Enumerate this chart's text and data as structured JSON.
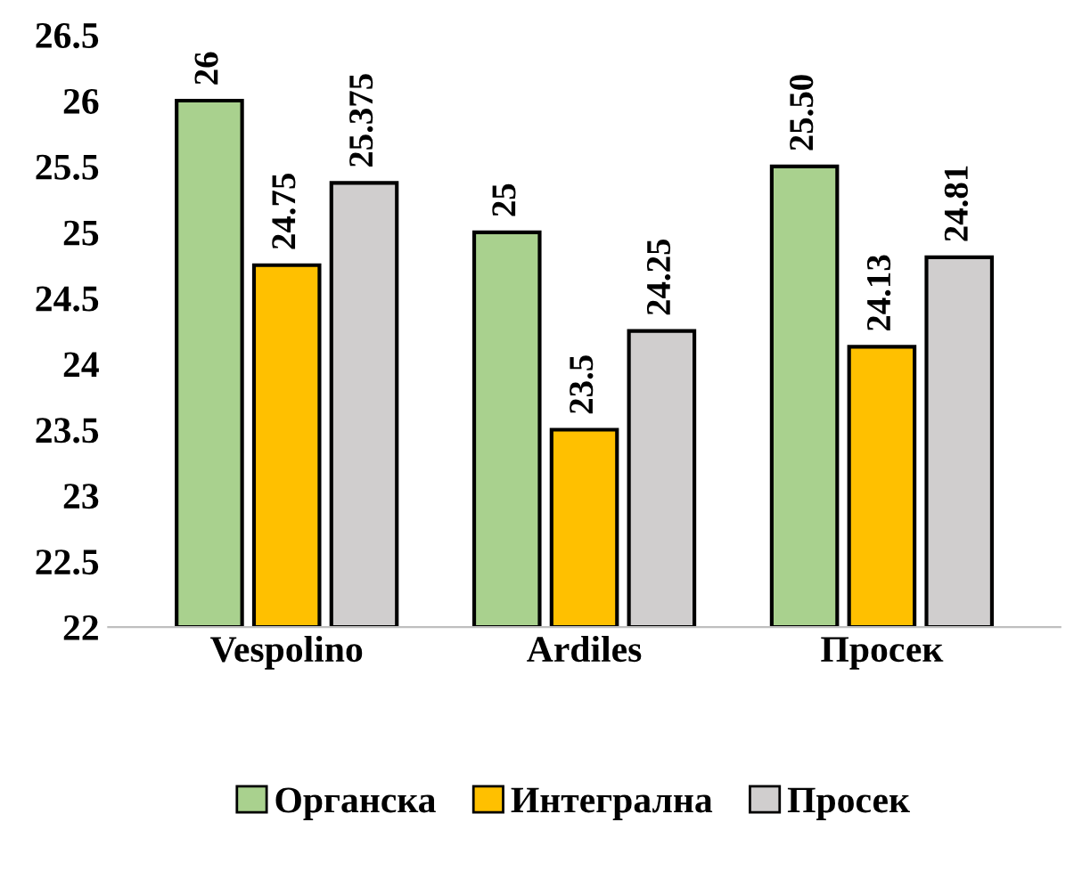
{
  "chart_data": {
    "type": "bar",
    "categories": [
      "Vespolino",
      "Ardiles",
      "Просек"
    ],
    "series": [
      {
        "name": "Органска",
        "color": "#a9d18e",
        "values": [
          26,
          25,
          25.5
        ],
        "value_labels": [
          "26",
          "25",
          "25.50"
        ]
      },
      {
        "name": "Интегрална",
        "color": "#ffc000",
        "values": [
          24.75,
          23.5,
          24.13
        ],
        "value_labels": [
          "24.75",
          "23.5",
          "24.13"
        ]
      },
      {
        "name": "Просек",
        "color": "#d0cece",
        "values": [
          25.375,
          24.25,
          24.81
        ],
        "value_labels": [
          "25.375",
          "24.25",
          "24.81"
        ]
      }
    ],
    "ylim": [
      22,
      26.5
    ],
    "yticks": [
      22,
      22.5,
      23,
      23.5,
      24,
      24.5,
      25,
      25.5,
      26,
      26.5
    ],
    "grid": false,
    "legend": "bottom"
  }
}
